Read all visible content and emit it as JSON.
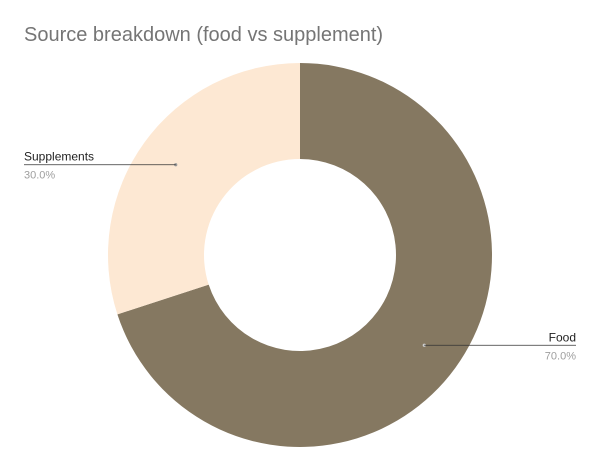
{
  "chart_data": {
    "type": "pie",
    "style": "donut",
    "title": "Source breakdown (food vs supplement)",
    "slices": [
      {
        "label": "Food",
        "value": 70.0,
        "display": "70.0%",
        "color": "#857861"
      },
      {
        "label": "Supplements",
        "value": 30.0,
        "display": "30.0%",
        "color": "#fde8d3"
      }
    ],
    "legend": "labels-outside"
  }
}
